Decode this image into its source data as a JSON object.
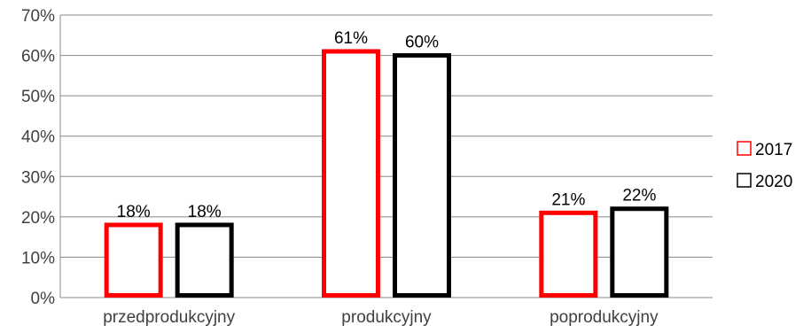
{
  "chart_data": {
    "type": "bar",
    "categories": [
      "przedprodukcyjny",
      "produkcyjny",
      "poprodukcyjny"
    ],
    "series": [
      {
        "name": "2017",
        "values": [
          18,
          61,
          21
        ],
        "labels": [
          "18%",
          "61%",
          "21%"
        ],
        "color": "#ff0000"
      },
      {
        "name": "2020",
        "values": [
          18,
          60,
          22
        ],
        "labels": [
          "18%",
          "60%",
          "22%"
        ],
        "color": "#000000"
      }
    ],
    "ylim": [
      0,
      70
    ],
    "yticks": [
      0,
      10,
      20,
      30,
      40,
      50,
      60,
      70
    ],
    "ytick_labels": [
      "0%",
      "10%",
      "20%",
      "30%",
      "40%",
      "50%",
      "60%",
      "70%"
    ],
    "grid": true,
    "gridline_color": "#888888",
    "bar_fill": "#ffffff",
    "legend_position": "right"
  }
}
